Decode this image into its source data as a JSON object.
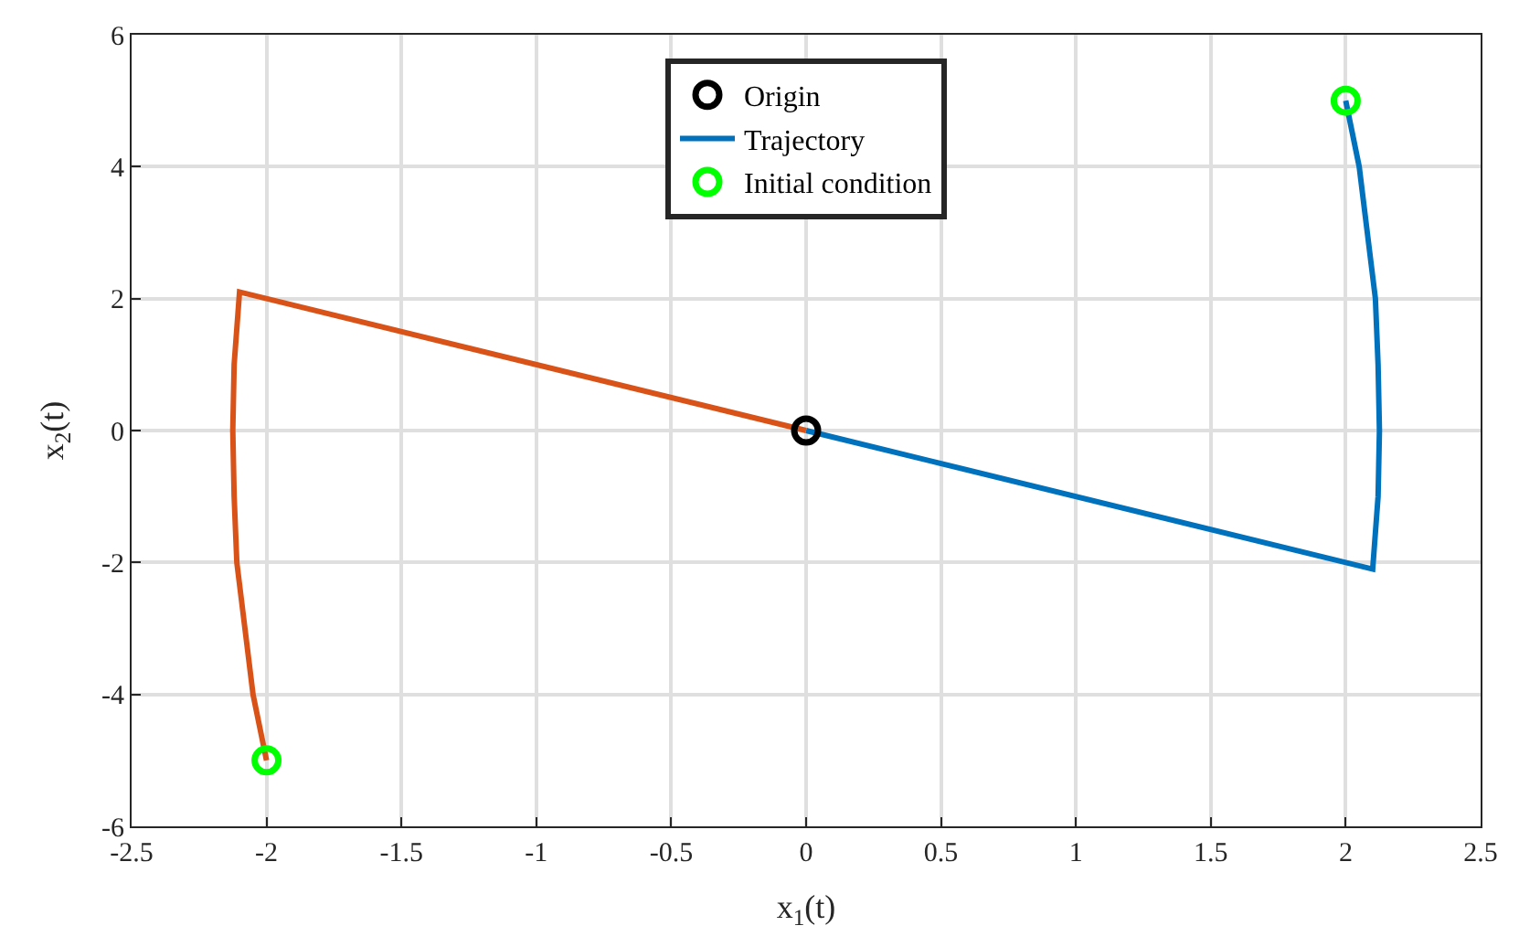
{
  "chart_data": {
    "type": "line",
    "xlabel": "x$_{1}$(t)",
    "ylabel": "x$_{2}$(t)",
    "xlim": [
      -2.5,
      2.5
    ],
    "ylim": [
      -6,
      6
    ],
    "xticks": [
      -2.5,
      -2,
      -1.5,
      -1,
      -0.5,
      0,
      0.5,
      1,
      1.5,
      2,
      2.5
    ],
    "yticks": [
      -6,
      -4,
      -2,
      0,
      2,
      4,
      6
    ],
    "grid": true,
    "legend": "top",
    "series": [
      {
        "name": "Origin",
        "type": "scatter",
        "marker": "circle",
        "color": "#000000",
        "x": [
          0
        ],
        "values": [
          0
        ]
      },
      {
        "name": "Trajectory",
        "color": "#0072bd",
        "x": [
          2,
          2.05,
          2.08,
          2.11,
          2.12,
          2.125,
          2.12,
          2.1,
          0
        ],
        "values": [
          5,
          4,
          3,
          2,
          1,
          0,
          -1,
          -2.1,
          0
        ]
      },
      {
        "color": "#d95319",
        "x": [
          -2,
          -2.05,
          -2.08,
          -2.11,
          -2.12,
          -2.125,
          -2.12,
          -2.1,
          0
        ],
        "values": [
          -5,
          -4,
          -3,
          -2,
          -1,
          0,
          1,
          2.1,
          0
        ]
      },
      {
        "name": "Initial condition",
        "type": "scatter",
        "marker": "circle",
        "color": "#00ff00",
        "x": [
          2,
          -2
        ],
        "values": [
          5,
          -5
        ]
      }
    ]
  }
}
